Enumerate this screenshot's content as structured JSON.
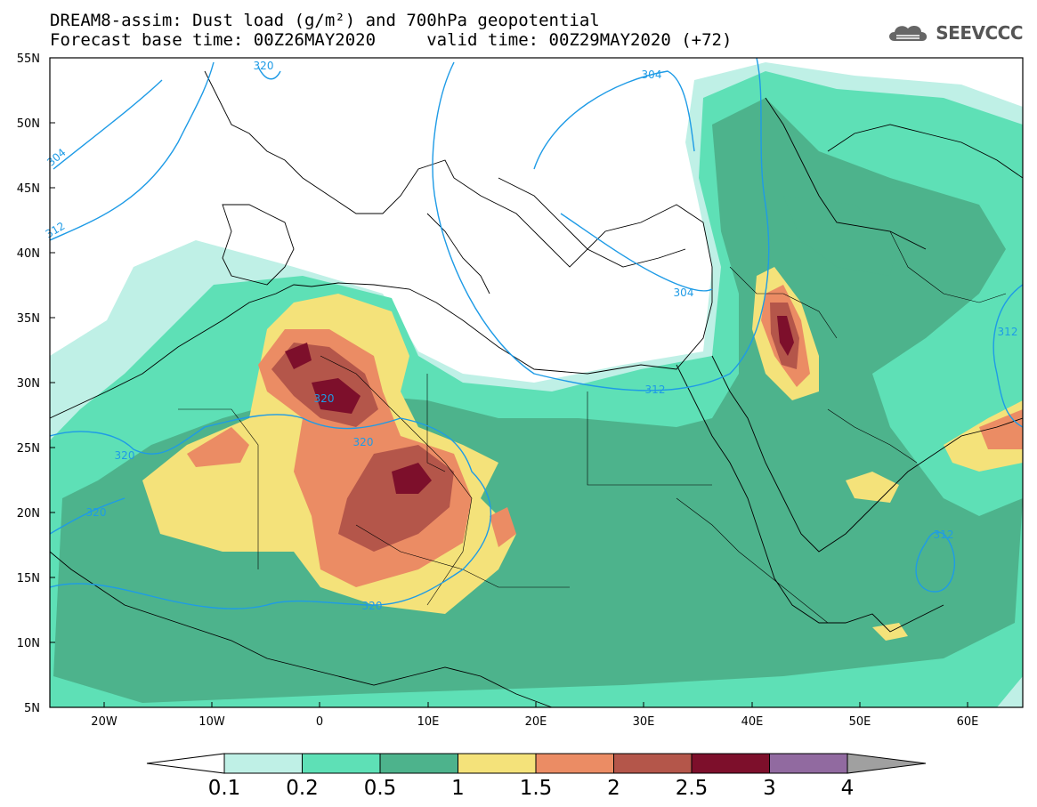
{
  "title_line1": "DREAM8-assim: Dust load (g/m²) and 700hPa geopotential",
  "title_line2": "Forecast base time: 00Z26MAY2020     valid time: 00Z29MAY2020 (+72)",
  "logo_text": "SEEVCCC",
  "lat_labels": [
    "55N",
    "50N",
    "45N",
    "40N",
    "35N",
    "30N",
    "25N",
    "20N",
    "15N",
    "10N",
    "5N"
  ],
  "lon_labels": [
    "20W",
    "10W",
    "0",
    "10E",
    "20E",
    "30E",
    "40E",
    "50E",
    "60E"
  ],
  "contour_labels": [
    "320",
    "304",
    "312",
    "304",
    "304",
    "320",
    "320",
    "320",
    "320",
    "320",
    "312",
    "312",
    "312"
  ],
  "colorbar": {
    "ticks": [
      "0.1",
      "0.2",
      "0.5",
      "1",
      "1.5",
      "2",
      "2.5",
      "3",
      "4"
    ],
    "colors": [
      "#ffffff",
      "#bff0e6",
      "#5ee0b6",
      "#4db38c",
      "#f4e27a",
      "#eb8c64",
      "#b4564a",
      "#7d0f2b",
      "#916aa0",
      "#a0a0a0"
    ]
  },
  "chart_data": {
    "type": "map",
    "field": "Dust load (g/m²)",
    "contour_field": "700hPa geopotential",
    "lon_range": [
      -25,
      65
    ],
    "lat_range": [
      5,
      55
    ],
    "levels": [
      0.1,
      0.2,
      0.5,
      1,
      1.5,
      2,
      2.5,
      3,
      4
    ]
  }
}
